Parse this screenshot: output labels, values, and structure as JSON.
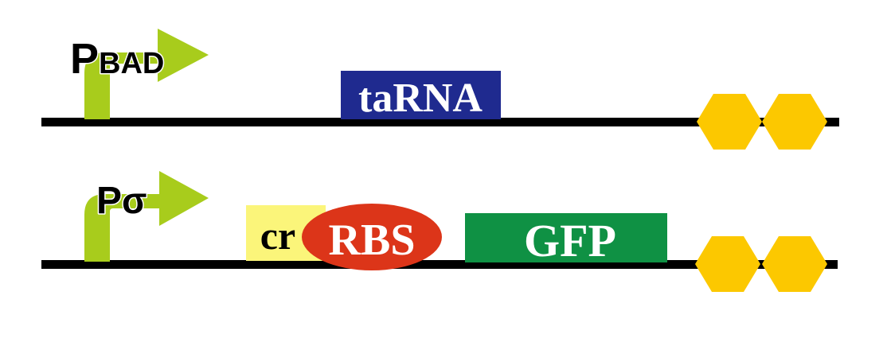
{
  "colors": {
    "background": "#ffffff",
    "dna_line": "#000000",
    "promoter_arrow": "#a8cc1c",
    "promoter_label_fill": "#000000",
    "promoter_label_outline": "#ffffff",
    "tarna_box": "#1f2a8f",
    "tarna_text": "#ffffff",
    "cr_box": "#fbf57a",
    "cr_text": "#000000",
    "rbs_ellipse": "#dc3519",
    "rbs_text": "#ffffff",
    "gfp_box": "#0f9144",
    "gfp_text": "#ffffff",
    "terminator": "#fcc800"
  },
  "constructs": [
    {
      "promoter": {
        "icon": "promoter-arrow-icon",
        "label_main": "P",
        "label_sub": "BAD"
      },
      "tarna": {
        "label": "taRNA"
      },
      "terminator": {
        "icon": "double-terminator-icon"
      }
    },
    {
      "promoter": {
        "icon": "promoter-arrow-icon",
        "label_main": "P",
        "label_sub": "σ"
      },
      "cr": {
        "label": "cr"
      },
      "rbs": {
        "label": "RBS"
      },
      "gfp": {
        "label": "GFP"
      },
      "terminator": {
        "icon": "double-terminator-icon"
      }
    }
  ]
}
